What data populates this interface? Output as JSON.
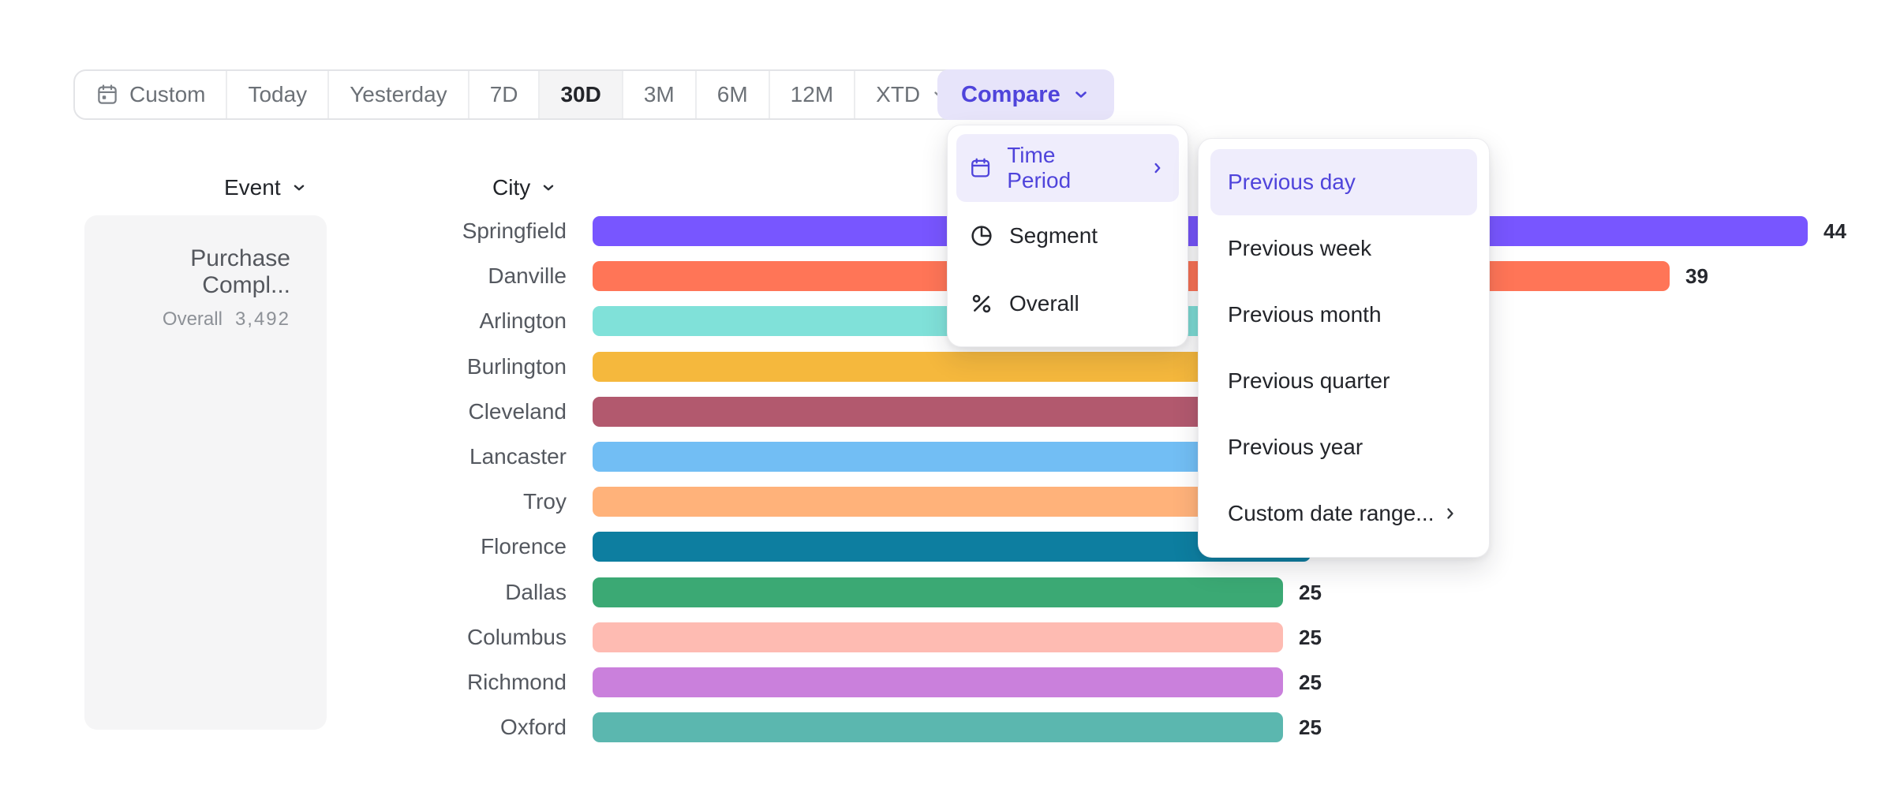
{
  "toolbar": {
    "ranges": [
      {
        "label": "Custom"
      },
      {
        "label": "Today"
      },
      {
        "label": "Yesterday"
      },
      {
        "label": "7D"
      },
      {
        "label": "30D",
        "selected": true
      },
      {
        "label": "3M"
      },
      {
        "label": "6M"
      },
      {
        "label": "12M"
      },
      {
        "label": "XTD",
        "has_chevron": true
      }
    ],
    "selected_range": "30D"
  },
  "compare_button": {
    "label": "Compare"
  },
  "compare_menu": {
    "items": [
      {
        "label": "Time Period",
        "icon": "calendar-icon",
        "highlighted": true,
        "has_submenu": true
      },
      {
        "label": "Segment",
        "icon": "segment-icon"
      },
      {
        "label": "Overall",
        "icon": "percent-icon"
      }
    ]
  },
  "time_period_submenu": {
    "items": [
      {
        "label": "Previous day",
        "highlighted": true
      },
      {
        "label": "Previous week"
      },
      {
        "label": "Previous month"
      },
      {
        "label": "Previous quarter"
      },
      {
        "label": "Previous year"
      },
      {
        "label": "Custom date range...",
        "has_submenu": true
      }
    ]
  },
  "event_panel": {
    "header": "Event",
    "event_name": "Purchase Compl...",
    "overall_label": "Overall",
    "overall_value": "3,492"
  },
  "chart_data": {
    "type": "bar",
    "orientation": "horizontal",
    "category_axis_label": "City",
    "categories": [
      "Springfield",
      "Danville",
      "Arlington",
      "Burlington",
      "Cleveland",
      "Lancaster",
      "Troy",
      "Florence",
      "Dallas",
      "Columbus",
      "Richmond",
      "Oxford"
    ],
    "values": [
      44,
      39,
      30,
      29,
      28,
      27,
      26,
      26,
      25,
      25,
      25,
      25
    ],
    "value_labels_visible": [
      true,
      true,
      false,
      false,
      false,
      false,
      false,
      false,
      true,
      true,
      true,
      true
    ],
    "colors": [
      "#7856FF",
      "#FF7557",
      "#80E1D9",
      "#F5B83D",
      "#B2596E",
      "#72BEF4",
      "#FFB27A",
      "#0D7EA0",
      "#3BA974",
      "#FEBBB2",
      "#CA80DC",
      "#5BB7AF"
    ],
    "xlim": [
      0,
      46
    ],
    "grid": false,
    "legend": "none",
    "accent_colors": {
      "brand_purple": "#4F44DB",
      "menu_highlight_bg": "#EFEDFC",
      "compare_button_bg": "#E7E4FA",
      "selected_range_bg": "#F4F4F5",
      "card_bg": "#F5F5F6"
    }
  }
}
